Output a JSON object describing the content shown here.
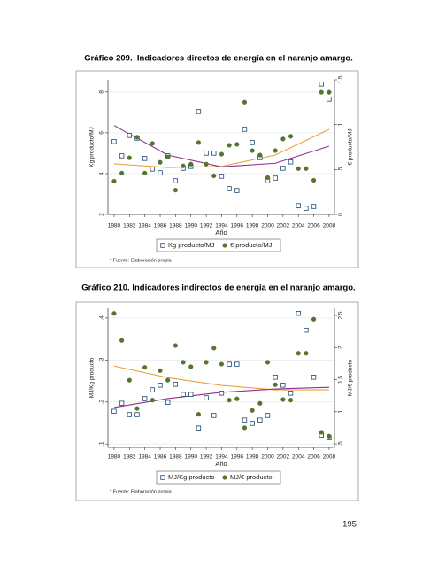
{
  "page_number": 195,
  "chart_data": [
    {
      "type": "scatter",
      "title": "Gráfico 209.  Indicadores directos de energía en el naranjo amargo.",
      "x_label": "Año",
      "y_label": "Kg producto/MJ",
      "y2_label": "€ producto/MJ",
      "note": "* Fuente: Elaboración propia",
      "x": [
        1980,
        1981,
        1982,
        1983,
        1984,
        1985,
        1986,
        1987,
        1988,
        1989,
        1990,
        1991,
        1992,
        1993,
        1994,
        1995,
        1996,
        1997,
        1998,
        1999,
        2000,
        2001,
        2002,
        2003,
        2004,
        2005,
        2006,
        2007,
        2008
      ],
      "xlim": [
        1979.2,
        2008.7
      ],
      "xticks": [
        1980,
        1982,
        1984,
        1986,
        1988,
        1990,
        1992,
        1994,
        1996,
        1998,
        2000,
        2002,
        2004,
        2006,
        2008
      ],
      "ylim": [
        2,
        8.6
      ],
      "yticks": [
        2,
        4,
        6,
        8
      ],
      "y2lim": [
        0,
        1.5
      ],
      "y2ticks": [
        0,
        {
          "value": 0.5,
          "label": ".5"
        },
        1,
        1.5
      ],
      "grid": true,
      "series": [
        {
          "name": "Kg producto/MJ",
          "color": "#1a476f",
          "marker": "square",
          "values": [
            5.57,
            4.87,
            5.87,
            5.74,
            4.74,
            4.22,
            4.04,
            4.87,
            3.65,
            4.26,
            4.35,
            7.04,
            5.0,
            5.0,
            3.87,
            3.26,
            3.17,
            6.17,
            5.52,
            4.78,
            3.65,
            3.78,
            4.26,
            4.57,
            2.43,
            2.3,
            2.39,
            8.39,
            7.65
          ]
        },
        {
          "name": "€ producto/MJ",
          "axis": "y2",
          "color": "#55752f",
          "marker": "circle",
          "values": [
            0.37,
            0.46,
            0.63,
            0.86,
            0.46,
            0.79,
            0.58,
            0.64,
            0.27,
            0.54,
            0.56,
            0.8,
            0.56,
            0.43,
            0.67,
            0.77,
            0.78,
            1.25,
            0.71,
            0.66,
            0.41,
            0.71,
            0.84,
            0.87,
            0.51,
            0.51,
            0.38,
            1.36,
            1.36
          ]
        }
      ],
      "fit_lines": [
        {
          "color": "#e8a03a",
          "x": [
            1980,
            1987,
            1994,
            2001,
            2008
          ],
          "values": [
            4.48,
            4.3,
            4.35,
            4.91,
            6.17
          ]
        },
        {
          "axis": "y2",
          "color": "#90308a",
          "x": [
            1980,
            1987,
            1994,
            2001,
            2008
          ],
          "values": [
            0.99,
            0.66,
            0.53,
            0.57,
            0.76
          ]
        }
      ]
    },
    {
      "type": "scatter",
      "title": "Gráfico 210. Indicadores indirectos de energía en el naranjo amargo.",
      "x_label": "Año",
      "y_label": "MJ/Kg producto",
      "y2_label": "MJ/€ producto",
      "note": "* Fuente: Elaboración propia",
      "x": [
        1980,
        1981,
        1982,
        1983,
        1984,
        1985,
        1986,
        1987,
        1988,
        1989,
        1990,
        1991,
        1992,
        1993,
        1994,
        1995,
        1996,
        1997,
        1998,
        1999,
        2000,
        2001,
        2002,
        2003,
        2004,
        2005,
        2006,
        2007,
        2008
      ],
      "xlim": [
        1979.2,
        2008.7
      ],
      "xticks": [
        1980,
        1982,
        1984,
        1986,
        1988,
        1990,
        1992,
        1994,
        1996,
        1998,
        2000,
        2002,
        2004,
        2006,
        2008
      ],
      "ylim": [
        0.092,
        0.423
      ],
      "yticks": [
        {
          "value": 0.1,
          "label": ".1"
        },
        {
          "value": 0.2,
          "label": ".2"
        },
        {
          "value": 0.3,
          "label": ".3"
        },
        {
          "value": 0.4,
          "label": ".4"
        }
      ],
      "y2lim": [
        0.445,
        2.61
      ],
      "y2ticks": [
        {
          "value": 0.5,
          "label": ".5"
        },
        1,
        1.5,
        2,
        2.5
      ],
      "grid": true,
      "series": [
        {
          "name": "MJ/Kg producto",
          "color": "#1a476f",
          "marker": "square",
          "values": [
            0.178,
            0.197,
            0.17,
            0.17,
            0.208,
            0.229,
            0.24,
            0.199,
            0.242,
            0.218,
            0.218,
            0.138,
            0.21,
            0.168,
            0.221,
            0.29,
            0.29,
            0.157,
            0.149,
            0.157,
            0.168,
            0.259,
            0.24,
            0.221,
            0.411,
            0.371,
            0.259,
            0.121,
            0.115
          ]
        },
        {
          "name": "MJ/€ producto",
          "axis": "y2",
          "color": "#55752f",
          "marker": "circle",
          "values": [
            2.53,
            2.11,
            1.49,
            1.05,
            1.69,
            1.18,
            1.64,
            1.49,
            2.03,
            1.77,
            1.7,
            0.96,
            1.77,
            1.99,
            1.74,
            1.18,
            1.2,
            0.75,
            1.02,
            1.13,
            1.77,
            1.42,
            1.19,
            1.18,
            1.91,
            1.91,
            2.44,
            0.68,
            0.62
          ]
        }
      ],
      "fit_lines": [
        {
          "axis": "y2",
          "color": "#e8a03a",
          "x": [
            1980,
            1987,
            1994,
            2001,
            2008
          ],
          "values": [
            1.71,
            1.53,
            1.41,
            1.34,
            1.34
          ]
        },
        {
          "color": "#90308a",
          "x": [
            1980,
            1987,
            1994,
            2001,
            2008
          ],
          "values": [
            0.187,
            0.208,
            0.223,
            0.231,
            0.235
          ]
        }
      ]
    }
  ]
}
